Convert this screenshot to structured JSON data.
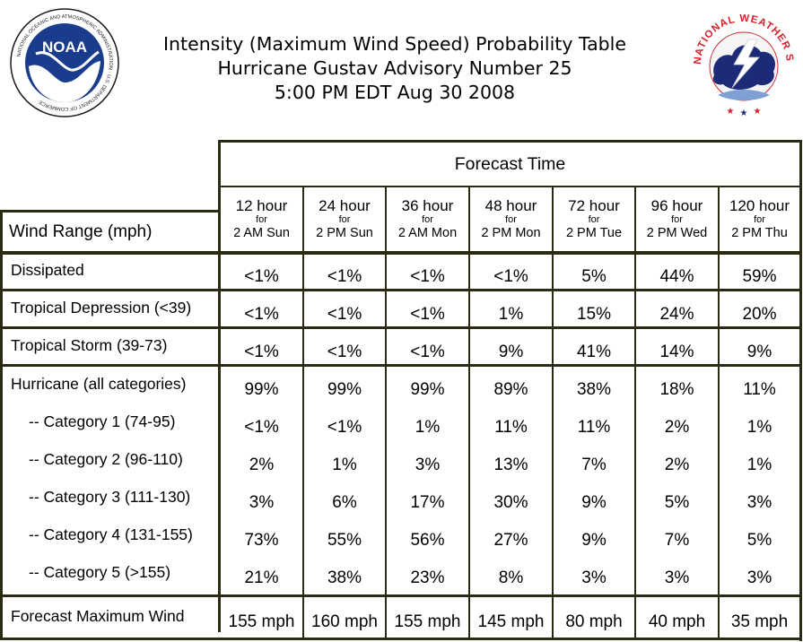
{
  "header": {
    "line1": "Intensity (Maximum Wind Speed) Probability Table",
    "line2": "Hurricane Gustav Advisory Number 25",
    "line3": "5:00 PM EDT Aug 30 2008"
  },
  "logos": {
    "noaa_text": "NOAA",
    "noaa_ring": "NATIONAL OCEANIC AND ATMOSPHERIC ADMINISTRATION · U.S. DEPARTMENT OF COMMERCE",
    "nws_ring": "NATIONAL WEATHER SERVICE"
  },
  "table": {
    "forecast_time_label": "Forecast Time",
    "row_header_label": "Wind Range (mph)",
    "columns": [
      {
        "hours": "12 hour",
        "for": "for",
        "when": "2 AM Sun"
      },
      {
        "hours": "24 hour",
        "for": "for",
        "when": "2 PM Sun"
      },
      {
        "hours": "36 hour",
        "for": "for",
        "when": "2 AM Mon"
      },
      {
        "hours": "48 hour",
        "for": "for",
        "when": "2 PM Mon"
      },
      {
        "hours": "72 hour",
        "for": "for",
        "when": "2 PM Tue"
      },
      {
        "hours": "96 hour",
        "for": "for",
        "when": "2 PM Wed"
      },
      {
        "hours": "120 hour",
        "for": "for",
        "when": "2 PM Thu"
      }
    ],
    "rows": [
      {
        "label": "Dissipated",
        "values": [
          "<1%",
          "<1%",
          "<1%",
          "<1%",
          "5%",
          "44%",
          "59%"
        ]
      },
      {
        "label": "Tropical Depression (<39)",
        "values": [
          "<1%",
          "<1%",
          "<1%",
          "1%",
          "15%",
          "24%",
          "20%"
        ]
      },
      {
        "label": "Tropical Storm (39-73)",
        "values": [
          "<1%",
          "<1%",
          "<1%",
          "9%",
          "41%",
          "14%",
          "9%"
        ]
      },
      {
        "label": "Hurricane (all categories)",
        "values": [
          "99%",
          "99%",
          "99%",
          "89%",
          "38%",
          "18%",
          "11%"
        ]
      },
      {
        "label": "-- Category 1 (74-95)",
        "values": [
          "<1%",
          "<1%",
          "1%",
          "11%",
          "11%",
          "2%",
          "1%"
        ]
      },
      {
        "label": "-- Category 2 (96-110)",
        "values": [
          "2%",
          "1%",
          "3%",
          "13%",
          "7%",
          "2%",
          "1%"
        ]
      },
      {
        "label": "-- Category 3 (111-130)",
        "values": [
          "3%",
          "6%",
          "17%",
          "30%",
          "9%",
          "5%",
          "3%"
        ]
      },
      {
        "label": "-- Category 4 (131-155)",
        "values": [
          "73%",
          "55%",
          "56%",
          "27%",
          "9%",
          "7%",
          "5%"
        ]
      },
      {
        "label": "-- Category 5 (>155)",
        "values": [
          "21%",
          "38%",
          "23%",
          "8%",
          "3%",
          "3%",
          "3%"
        ]
      },
      {
        "label": "Forecast Maximum Wind",
        "values": [
          "155 mph",
          "160 mph",
          "155 mph",
          "145 mph",
          "80 mph",
          "40 mph",
          "35 mph"
        ]
      }
    ]
  },
  "colors": {
    "border": "#2b2b14",
    "noaa_blue": "#1a3c8c",
    "nws_red": "#d4212a"
  }
}
